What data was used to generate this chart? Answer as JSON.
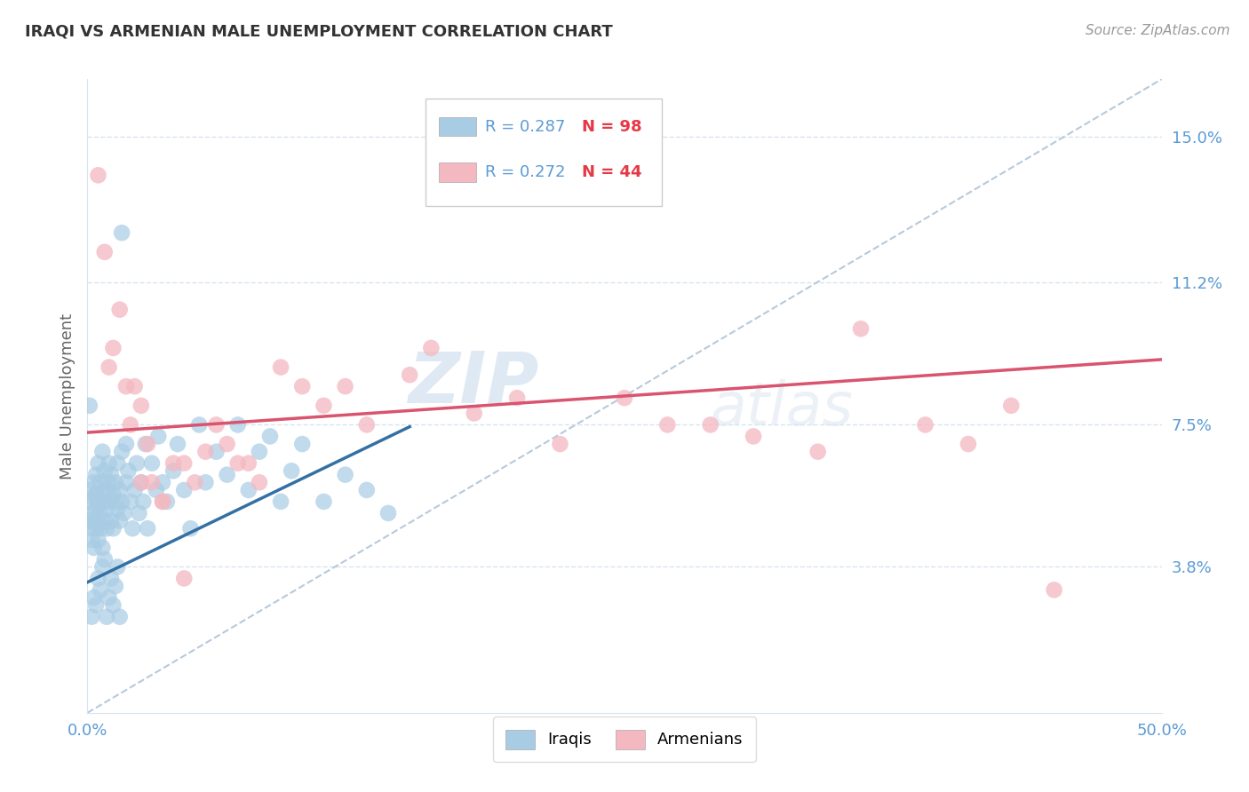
{
  "title": "IRAQI VS ARMENIAN MALE UNEMPLOYMENT CORRELATION CHART",
  "source": "Source: ZipAtlas.com",
  "ylabel": "Male Unemployment",
  "watermark": "ZIPatlas",
  "xlim": [
    0.0,
    0.5
  ],
  "ylim": [
    0.0,
    0.165
  ],
  "xticks": [
    0.0,
    0.1,
    0.2,
    0.3,
    0.4,
    0.5
  ],
  "xticklabels": [
    "0.0%",
    "",
    "",
    "",
    "",
    "50.0%"
  ],
  "yticks": [
    0.038,
    0.075,
    0.112,
    0.15
  ],
  "yticklabels": [
    "3.8%",
    "7.5%",
    "11.2%",
    "15.0%"
  ],
  "iraqis_R": 0.287,
  "iraqis_N": 98,
  "armenians_R": 0.272,
  "armenians_N": 44,
  "iraqis_color": "#a8cce4",
  "armenians_color": "#f4b8c1",
  "trend_iraqis_color": "#3470a3",
  "trend_armenians_color": "#d9546e",
  "diagonal_color": "#b0c4d8",
  "background_color": "#ffffff",
  "title_color": "#333333",
  "source_color": "#999999",
  "axis_label_color": "#5b9bd5",
  "legend_R_color": "#5b9bd5",
  "legend_N_color": "#e63946",
  "grid_color": "#d8e4f0",
  "iraqis_x": [
    0.001,
    0.001,
    0.002,
    0.002,
    0.002,
    0.002,
    0.003,
    0.003,
    0.003,
    0.003,
    0.004,
    0.004,
    0.004,
    0.004,
    0.005,
    0.005,
    0.005,
    0.005,
    0.006,
    0.006,
    0.006,
    0.007,
    0.007,
    0.007,
    0.008,
    0.008,
    0.008,
    0.009,
    0.009,
    0.009,
    0.01,
    0.01,
    0.01,
    0.011,
    0.011,
    0.012,
    0.012,
    0.013,
    0.013,
    0.014,
    0.014,
    0.015,
    0.015,
    0.016,
    0.016,
    0.017,
    0.018,
    0.018,
    0.019,
    0.02,
    0.021,
    0.022,
    0.023,
    0.024,
    0.025,
    0.026,
    0.027,
    0.028,
    0.03,
    0.032,
    0.033,
    0.035,
    0.037,
    0.04,
    0.042,
    0.045,
    0.048,
    0.052,
    0.055,
    0.06,
    0.065,
    0.07,
    0.075,
    0.08,
    0.085,
    0.09,
    0.095,
    0.1,
    0.11,
    0.12,
    0.13,
    0.14,
    0.001,
    0.002,
    0.003,
    0.004,
    0.005,
    0.006,
    0.007,
    0.008,
    0.009,
    0.01,
    0.011,
    0.012,
    0.013,
    0.014,
    0.015,
    0.016
  ],
  "iraqis_y": [
    0.058,
    0.05,
    0.052,
    0.055,
    0.048,
    0.045,
    0.05,
    0.056,
    0.043,
    0.06,
    0.048,
    0.053,
    0.057,
    0.062,
    0.045,
    0.049,
    0.055,
    0.065,
    0.052,
    0.048,
    0.06,
    0.055,
    0.043,
    0.068,
    0.05,
    0.058,
    0.063,
    0.053,
    0.058,
    0.048,
    0.055,
    0.06,
    0.065,
    0.05,
    0.062,
    0.048,
    0.057,
    0.055,
    0.06,
    0.053,
    0.065,
    0.058,
    0.05,
    0.055,
    0.068,
    0.052,
    0.06,
    0.07,
    0.063,
    0.055,
    0.048,
    0.058,
    0.065,
    0.052,
    0.06,
    0.055,
    0.07,
    0.048,
    0.065,
    0.058,
    0.072,
    0.06,
    0.055,
    0.063,
    0.07,
    0.058,
    0.048,
    0.075,
    0.06,
    0.068,
    0.062,
    0.075,
    0.058,
    0.068,
    0.072,
    0.055,
    0.063,
    0.07,
    0.055,
    0.062,
    0.058,
    0.052,
    0.08,
    0.025,
    0.03,
    0.028,
    0.035,
    0.032,
    0.038,
    0.04,
    0.025,
    0.03,
    0.035,
    0.028,
    0.033,
    0.038,
    0.025,
    0.125
  ],
  "armenians_x": [
    0.005,
    0.008,
    0.01,
    0.012,
    0.015,
    0.018,
    0.02,
    0.022,
    0.025,
    0.028,
    0.03,
    0.035,
    0.04,
    0.045,
    0.05,
    0.06,
    0.065,
    0.07,
    0.08,
    0.09,
    0.1,
    0.11,
    0.12,
    0.13,
    0.15,
    0.16,
    0.18,
    0.2,
    0.22,
    0.25,
    0.27,
    0.29,
    0.31,
    0.34,
    0.36,
    0.39,
    0.41,
    0.43,
    0.45,
    0.035,
    0.025,
    0.045,
    0.055,
    0.075
  ],
  "armenians_y": [
    0.14,
    0.12,
    0.09,
    0.095,
    0.105,
    0.085,
    0.075,
    0.085,
    0.08,
    0.07,
    0.06,
    0.055,
    0.065,
    0.065,
    0.06,
    0.075,
    0.07,
    0.065,
    0.06,
    0.09,
    0.085,
    0.08,
    0.085,
    0.075,
    0.088,
    0.095,
    0.078,
    0.082,
    0.07,
    0.082,
    0.075,
    0.075,
    0.072,
    0.068,
    0.1,
    0.075,
    0.07,
    0.08,
    0.032,
    0.055,
    0.06,
    0.035,
    0.068,
    0.065
  ]
}
